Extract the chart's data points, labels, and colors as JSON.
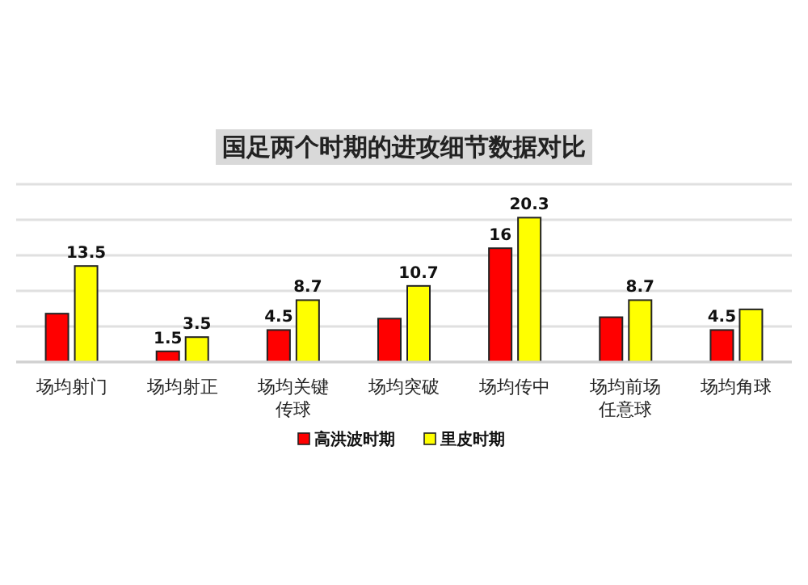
{
  "chart_data": {
    "type": "bar",
    "title": "国足两个时期的进攻细节数据对比",
    "categories": [
      "场均射门",
      "场均射正",
      "场均关键传球",
      "场均突破",
      "场均传中",
      "场均前场任意球",
      "场均角球"
    ],
    "series": [
      {
        "name": "高洪波时期",
        "color": "#ff0000",
        "values": [
          6.8,
          1.5,
          4.5,
          6.1,
          16,
          6.3,
          4.5
        ],
        "value_labels": [
          null,
          "1.5",
          "4.5",
          null,
          "16",
          null,
          "4.5"
        ]
      },
      {
        "name": "里皮时期",
        "color": "#ffff00",
        "values": [
          13.5,
          3.5,
          8.7,
          10.7,
          20.3,
          8.7,
          7.4
        ],
        "value_labels": [
          "13.5",
          "3.5",
          "8.7",
          "10.7",
          "20.3",
          "8.7",
          null
        ]
      }
    ],
    "ylim": [
      0,
      25
    ],
    "yticks": [
      {
        "value": 0,
        "label": null
      },
      {
        "value": 5,
        "label": null
      },
      {
        "value": 10,
        "label": null
      },
      {
        "value": 15,
        "label": null
      },
      {
        "value": 20,
        "label": null
      },
      {
        "value": 25,
        "label": null
      }
    ],
    "grid": "y",
    "legend": "bottom"
  }
}
